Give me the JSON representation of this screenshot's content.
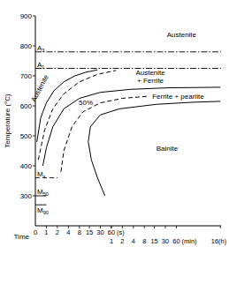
{
  "chart_data": {
    "type": "line",
    "xlabel": "Time",
    "ylabel": "Temperature (°C)",
    "log": "x",
    "xlim": [
      0.5,
      60000
    ],
    "ylim": [
      200,
      900
    ],
    "yticks": [
      300,
      400,
      500,
      600,
      700,
      800,
      900
    ],
    "x_origin_label": "0",
    "xticks": [
      1,
      2,
      4,
      8,
      15,
      30,
      60
    ],
    "x_unit": "(s)",
    "xticks2": [
      {
        "value": 60,
        "label": "1"
      },
      {
        "value": 120,
        "label": "2"
      },
      {
        "value": 240,
        "label": "4"
      },
      {
        "value": 480,
        "label": "8"
      },
      {
        "value": 900,
        "label": "15"
      },
      {
        "value": 1800,
        "label": "30"
      },
      {
        "value": 3600,
        "label": "60"
      },
      {
        "value": 57600,
        "label": "16(h)"
      }
    ],
    "x2_unit": "(min)",
    "reference_lines": [
      {
        "label": "A3",
        "value": 780,
        "line_style": "dashdot",
        "xmax": 60000
      },
      {
        "label": "A1",
        "value": 725,
        "line_style": "dashdot",
        "xmax": 60000
      },
      {
        "label": "Ms",
        "value": 360,
        "line_style": "dashed",
        "xmax": 2
      },
      {
        "label": "M50",
        "value": 300,
        "line_style": "solid",
        "xmax": 1
      },
      {
        "label": "M90",
        "value": 270,
        "line_style": "solid",
        "xmax": 1
      }
    ],
    "series": [
      {
        "line_style": "solid",
        "color": "#000000",
        "x": [
          0.55,
          0.7,
          1,
          1.6,
          3,
          6,
          12,
          25
        ],
        "values": [
          480,
          560,
          610,
          650,
          680,
          700,
          712,
          720
        ]
      },
      {
        "line_style": "dashed",
        "color": "#000000",
        "x": [
          0.6,
          0.9,
          1.5,
          3,
          8,
          25,
          80
        ],
        "values": [
          420,
          520,
          590,
          640,
          680,
          705,
          718
        ]
      },
      {
        "line_style": "solid",
        "color": "#000000",
        "x": [
          0.8,
          1,
          1.5,
          3,
          8,
          30,
          200,
          2000,
          57600
        ],
        "values": [
          400,
          460,
          530,
          590,
          625,
          645,
          655,
          660,
          662
        ]
      },
      {
        "line_style": "dashed",
        "color": "#000000",
        "x": [
          2.5,
          3,
          5,
          10,
          30,
          120,
          600
        ],
        "values": [
          380,
          450,
          530,
          580,
          610,
          625,
          632
        ]
      },
      {
        "line_style": "solid",
        "color": "#000000",
        "x": [
          40,
          25,
          17,
          14,
          16,
          30,
          100,
          1000,
          10000,
          57600
        ],
        "values": [
          300,
          360,
          420,
          480,
          530,
          570,
          590,
          605,
          612,
          615
        ]
      }
    ],
    "annotations": [
      {
        "text": "Austenite",
        "x": 5000,
        "y": 830
      },
      {
        "text": "Austenite",
        "x": 0.75,
        "y": 655
      },
      {
        "text": "Austenite + Ferrite",
        "x": 700,
        "y": 702
      },
      {
        "text": "50%",
        "x": 12,
        "y": 603
      },
      {
        "text": "Ferrite + pearlite",
        "x": 4000,
        "y": 625
      },
      {
        "text": "Bainite",
        "x": 2000,
        "y": 450
      }
    ]
  }
}
